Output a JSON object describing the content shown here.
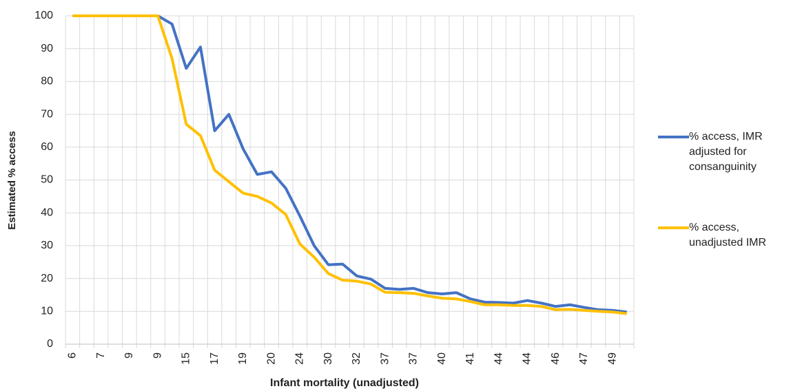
{
  "chart_data": {
    "type": "line",
    "x_label": "Infant mortality (unadjusted)",
    "y_label": "Estimated % access",
    "categories": [
      "6",
      null,
      "7",
      null,
      "9",
      null,
      "9",
      null,
      "15",
      null,
      "17",
      null,
      "19",
      null,
      "20",
      null,
      "24",
      null,
      "30",
      null,
      "32",
      null,
      "37",
      null,
      "37",
      null,
      "40",
      null,
      "41",
      null,
      "44",
      null,
      "44",
      null,
      "46",
      null,
      "47",
      null,
      "49",
      null
    ],
    "series": [
      {
        "name": "% access, IMR adjusted for consanguinity",
        "color": "#4472c4",
        "values": [
          100,
          100,
          100,
          100,
          100,
          100,
          100,
          97.5,
          84,
          90.5,
          65,
          70,
          59.5,
          51.7,
          52.5,
          47.5,
          39,
          30,
          24.2,
          24.4,
          20.8,
          19.8,
          17,
          16.7,
          17,
          15.7,
          15.3,
          15.7,
          13.8,
          12.8,
          12.7,
          12.5,
          13.3,
          12.5,
          11.5,
          12,
          11.2,
          10.5,
          10.3,
          9.8
        ]
      },
      {
        "name": "% access, unadjusted IMR",
        "color": "#ffc000",
        "values": [
          100,
          100,
          100,
          100,
          100,
          100,
          100,
          87,
          67,
          63.5,
          53,
          49.5,
          46,
          45,
          43,
          39.5,
          30.5,
          26.5,
          21.5,
          19.5,
          19.2,
          18.3,
          15.8,
          15.7,
          15.5,
          14.7,
          14,
          13.8,
          13,
          12,
          12,
          11.8,
          11.8,
          11.5,
          10.5,
          10.6,
          10.3,
          10,
          9.8,
          9.3
        ]
      }
    ],
    "ylim": [
      0,
      100
    ],
    "yticks": [
      0,
      10,
      20,
      30,
      40,
      50,
      60,
      70,
      80,
      90,
      100
    ],
    "grid": true,
    "legend": "right"
  }
}
